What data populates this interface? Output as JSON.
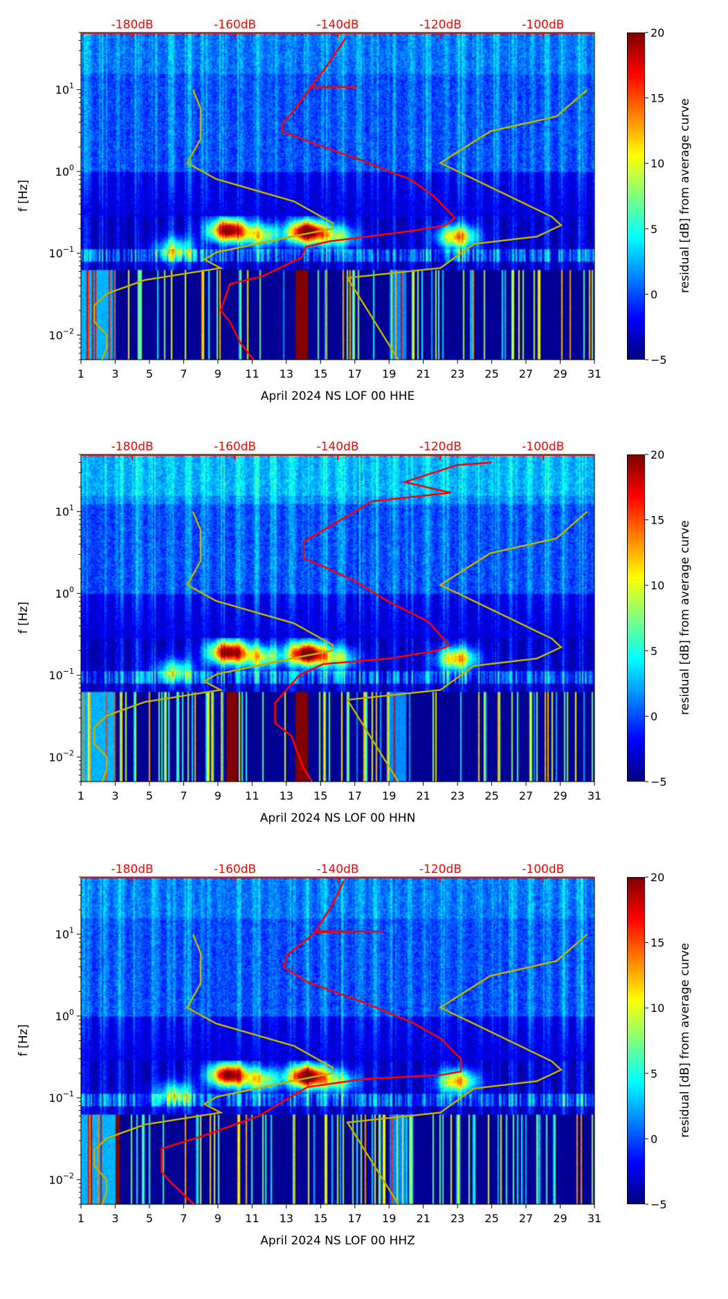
{
  "chart_data": [
    {
      "type": "heatmap",
      "xlabel": "April 2024 NS LOF 00 HHE",
      "ylabel": "f [Hz]",
      "colorbar_label": "residual [dB] from average curve",
      "red_curve_dB_vs_Hz": [
        [
          -138.4,
          43
        ],
        [
          -142.5,
          18
        ],
        [
          -145.3,
          10.8
        ],
        [
          -136.4,
          10.8
        ],
        [
          -145.3,
          10.6
        ],
        [
          -149,
          5.1
        ],
        [
          -150.8,
          3.8
        ],
        [
          -150.8,
          3.1
        ],
        [
          -143.5,
          2.07
        ],
        [
          -136,
          1.42
        ],
        [
          -129.6,
          0.98
        ],
        [
          -126,
          0.81
        ],
        [
          -121.3,
          0.5
        ],
        [
          -117.2,
          0.27
        ],
        [
          -119,
          0.22
        ],
        [
          -125,
          0.19
        ],
        [
          -141.6,
          0.14
        ],
        [
          -146.2,
          0.12
        ],
        [
          -147,
          0.089
        ],
        [
          -154.5,
          0.053
        ],
        [
          -161,
          0.042
        ],
        [
          -162.8,
          0.02
        ],
        [
          -161,
          0.0146
        ],
        [
          -159,
          0.0081
        ],
        [
          -156.4,
          0.005
        ]
      ]
    },
    {
      "type": "heatmap",
      "xlabel": "April 2024 NS LOF 00 HHN",
      "ylabel": "f [Hz]",
      "colorbar_label": "residual [dB] from average curve",
      "red_curve_dB_vs_Hz": [
        [
          -110,
          40
        ],
        [
          -116.8,
          37
        ],
        [
          -127,
          23
        ],
        [
          -118,
          17
        ],
        [
          -133.3,
          13.4
        ],
        [
          -141.2,
          6.8
        ],
        [
          -146.7,
          4.3
        ],
        [
          -146.7,
          2.7
        ],
        [
          -142.8,
          2.15
        ],
        [
          -136.5,
          1.4
        ],
        [
          -130.2,
          0.8
        ],
        [
          -122.3,
          0.45
        ],
        [
          -118.3,
          0.23
        ],
        [
          -120.7,
          0.2
        ],
        [
          -130,
          0.16
        ],
        [
          -142.8,
          0.137
        ],
        [
          -147.5,
          0.1
        ],
        [
          -152.2,
          0.046
        ],
        [
          -152.2,
          0.026
        ],
        [
          -149,
          0.018
        ],
        [
          -146.7,
          0.0073
        ],
        [
          -145,
          0.005
        ]
      ]
    },
    {
      "type": "heatmap",
      "xlabel": "April 2024 NS LOF 00 HHZ",
      "ylabel": "f [Hz]",
      "colorbar_label": "residual [dB] from average curve",
      "red_curve_dB_vs_Hz": [
        [
          -138.8,
          45
        ],
        [
          -141.2,
          22
        ],
        [
          -144.3,
          11
        ],
        [
          -131.2,
          10.8
        ],
        [
          -144.3,
          10.6
        ],
        [
          -149.8,
          5.6
        ],
        [
          -150.6,
          4.0
        ],
        [
          -145.9,
          2.6
        ],
        [
          -134.9,
          1.47
        ],
        [
          -125.4,
          0.83
        ],
        [
          -119.9,
          0.53
        ],
        [
          -116,
          0.3
        ],
        [
          -116,
          0.21
        ],
        [
          -119.9,
          0.19
        ],
        [
          -134.9,
          0.17
        ],
        [
          -145.9,
          0.135
        ],
        [
          -155.4,
          0.06
        ],
        [
          -166.4,
          0.034
        ],
        [
          -174.3,
          0.024
        ],
        [
          -174.3,
          0.0125
        ],
        [
          -172.7,
          0.0095
        ],
        [
          -168,
          0.005
        ]
      ]
    }
  ],
  "shared": {
    "x_days_range": [
      1,
      31
    ],
    "x_ticks": [
      "1",
      "3",
      "5",
      "7",
      "9",
      "11",
      "13",
      "15",
      "17",
      "19",
      "21",
      "23",
      "25",
      "27",
      "29",
      "31"
    ],
    "top_axis_dB_range": [
      -190,
      -90
    ],
    "top_ticks": [
      "-180dB",
      "-160dB",
      "-140dB",
      "-120dB",
      "-100dB"
    ],
    "top_tick_values": [
      -180,
      -160,
      -140,
      -120,
      -100
    ],
    "ylim_Hz": [
      0.005,
      50
    ],
    "y_ticks": [
      {
        "label": "10",
        "exp": "1",
        "value": 10
      },
      {
        "label": "10",
        "exp": "0",
        "value": 1
      },
      {
        "label": "10",
        "exp": "−1",
        "value": 0.1
      },
      {
        "label": "10",
        "exp": "−2",
        "value": 0.01
      }
    ],
    "colorbar_range": [
      -5,
      20
    ],
    "colorbar_ticks": [
      "20",
      "15",
      "10",
      "5",
      "0",
      "−5"
    ],
    "colorbar_tick_values": [
      20,
      15,
      10,
      5,
      0,
      -5
    ],
    "colormap": "jet",
    "low_noise_model_dB_vs_Hz": [
      [
        -168.2,
        10
      ],
      [
        -166.7,
        5.9
      ],
      [
        -166.7,
        2.5
      ],
      [
        -169.3,
        1.27
      ],
      [
        -163.7,
        0.81
      ],
      [
        -148.5,
        0.43
      ],
      [
        -141,
        0.235
      ],
      [
        -141,
        0.2
      ],
      [
        -149,
        0.16
      ],
      [
        -163.5,
        0.103
      ],
      [
        -166,
        0.084
      ],
      [
        -162.8,
        0.066
      ],
      [
        -177.6,
        0.047
      ],
      [
        -185,
        0.032
      ],
      [
        -187.4,
        0.023
      ],
      [
        -187.4,
        0.0146
      ],
      [
        -185,
        0.01
      ],
      [
        -185,
        0.0069
      ],
      [
        -185.9,
        0.005
      ]
    ],
    "high_noise_model_dB_vs_Hz": [
      [
        -91.4,
        10
      ],
      [
        -97.4,
        4.7
      ],
      [
        -110.3,
        3.1
      ],
      [
        -120,
        1.27
      ],
      [
        -98.3,
        0.28
      ],
      [
        -96.5,
        0.22
      ],
      [
        -101.2,
        0.16
      ],
      [
        -113.5,
        0.13
      ],
      [
        -120,
        0.066
      ],
      [
        -138.1,
        0.05
      ],
      [
        -128.2,
        0.005
      ]
    ],
    "colors": {
      "red_curve": "#ff0000",
      "noise_models": "#bfb000",
      "top_labels": "#ff0000"
    }
  }
}
